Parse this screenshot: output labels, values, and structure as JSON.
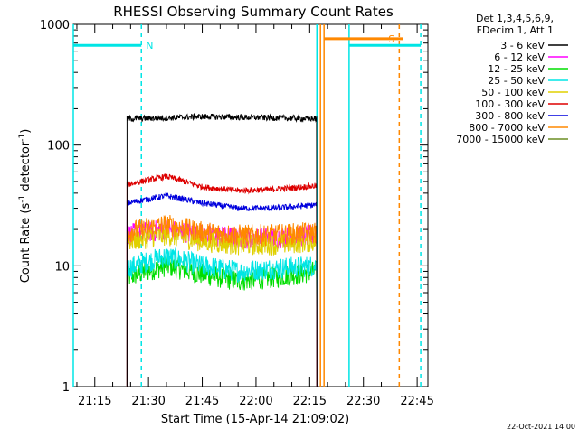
{
  "chart_data": {
    "type": "line",
    "title": "RHESSI Observing Summary Count Rates",
    "xlabel": "Start Time (15-Apr-14 21:09:02)",
    "ylabel_main": "Count Rate (s",
    "ylabel_sup1": "-1",
    "ylabel_mid": " detector",
    "ylabel_sup2": "-1",
    "ylabel_end": ")",
    "y_scale": "log",
    "xlim": [
      "21:09",
      "22:48"
    ],
    "ylim": [
      1,
      1000
    ],
    "x_ticks": [
      "21:15",
      "21:30",
      "21:45",
      "22:00",
      "22:15",
      "22:30",
      "22:45"
    ],
    "y_ticks": [
      {
        "value": 1,
        "label": "1"
      },
      {
        "value": 10,
        "label": "10"
      },
      {
        "value": 100,
        "label": "100"
      },
      {
        "value": 1000,
        "label": "1000"
      }
    ],
    "legend_header": [
      "Det 1,3,4,5,6,9,",
      "FDecim 1, Att 1"
    ],
    "legend_placement": "right",
    "data_interval": [
      "21:24",
      "22:17"
    ],
    "series": [
      {
        "name": "3 - 6 keV",
        "color": "#000000",
        "x": [
          "21:24",
          "21:35",
          "21:45",
          "21:55",
          "22:05",
          "22:17"
        ],
        "values": [
          165,
          168,
          172,
          170,
          168,
          165
        ]
      },
      {
        "name": "6 - 12 keV",
        "color": "#ff00ff",
        "x": [
          "21:24",
          "21:35",
          "21:45",
          "21:55",
          "22:05",
          "22:17"
        ],
        "values": [
          18,
          20,
          18,
          17,
          17,
          18
        ]
      },
      {
        "name": "12 - 25 keV",
        "color": "#00dd00",
        "x": [
          "21:24",
          "21:35",
          "21:45",
          "21:55",
          "22:05",
          "22:17"
        ],
        "values": [
          8,
          10,
          8.5,
          7.5,
          8,
          9
        ]
      },
      {
        "name": "25 - 50 keV",
        "color": "#00e5e5",
        "x": [
          "21:24",
          "21:35",
          "21:45",
          "21:55",
          "22:05",
          "22:17"
        ],
        "values": [
          9.5,
          12,
          10,
          9,
          9.5,
          10
        ]
      },
      {
        "name": "50 - 100 keV",
        "color": "#e0d000",
        "x": [
          "21:24",
          "21:35",
          "21:45",
          "21:55",
          "22:05",
          "22:17"
        ],
        "values": [
          16,
          18,
          16,
          15,
          15,
          16
        ]
      },
      {
        "name": "100 - 300 keV",
        "color": "#dd0000",
        "x": [
          "21:24",
          "21:35",
          "21:45",
          "21:55",
          "22:05",
          "22:17"
        ],
        "values": [
          47,
          55,
          45,
          42,
          43,
          46
        ]
      },
      {
        "name": "300 - 800 keV",
        "color": "#0000dd",
        "x": [
          "21:24",
          "21:35",
          "21:45",
          "21:55",
          "22:05",
          "22:17"
        ],
        "values": [
          33,
          38,
          33,
          30,
          30,
          32
        ]
      },
      {
        "name": "800 - 7000 keV",
        "color": "#ff8800",
        "x": [
          "21:24",
          "21:35",
          "21:45",
          "21:55",
          "22:05",
          "22:17"
        ],
        "values": [
          19,
          22,
          19,
          18,
          18,
          19
        ]
      },
      {
        "name": "7000 - 15000 keV",
        "color": "#6b8e23",
        "x": [],
        "values": []
      }
    ],
    "flag_bars": [
      {
        "label": "",
        "color": "#00e5e5",
        "x": [
          "21:09",
          "21:28"
        ],
        "value": 670
      },
      {
        "label": "N",
        "color": "#00e5e5",
        "x": [
          "21:28",
          "21:28"
        ],
        "value": 670
      },
      {
        "label": "",
        "color": "#00e5e5",
        "x": [
          "22:26",
          "22:46"
        ],
        "value": 670
      },
      {
        "label": "S",
        "color": "#ff8800",
        "x": [
          "22:19",
          "22:41"
        ],
        "value": 760
      }
    ],
    "vertical_markers": [
      {
        "x": "21:09",
        "color": "#00e5e5",
        "style": "solid"
      },
      {
        "x": "21:28",
        "color": "#00e5e5",
        "style": "dashed"
      },
      {
        "x": "22:17",
        "color": "#00e5e5",
        "style": "solid"
      },
      {
        "x": "22:18",
        "color": "#ff8800",
        "style": "solid"
      },
      {
        "x": "22:19",
        "color": "#ff8800",
        "style": "solid"
      },
      {
        "x": "22:26",
        "color": "#00e5e5",
        "style": "solid"
      },
      {
        "x": "22:40",
        "color": "#ff8800",
        "style": "dashed"
      },
      {
        "x": "22:46",
        "color": "#00e5e5",
        "style": "dashed"
      }
    ]
  },
  "footer": {
    "date": "22-Oct-2021 14:00"
  }
}
